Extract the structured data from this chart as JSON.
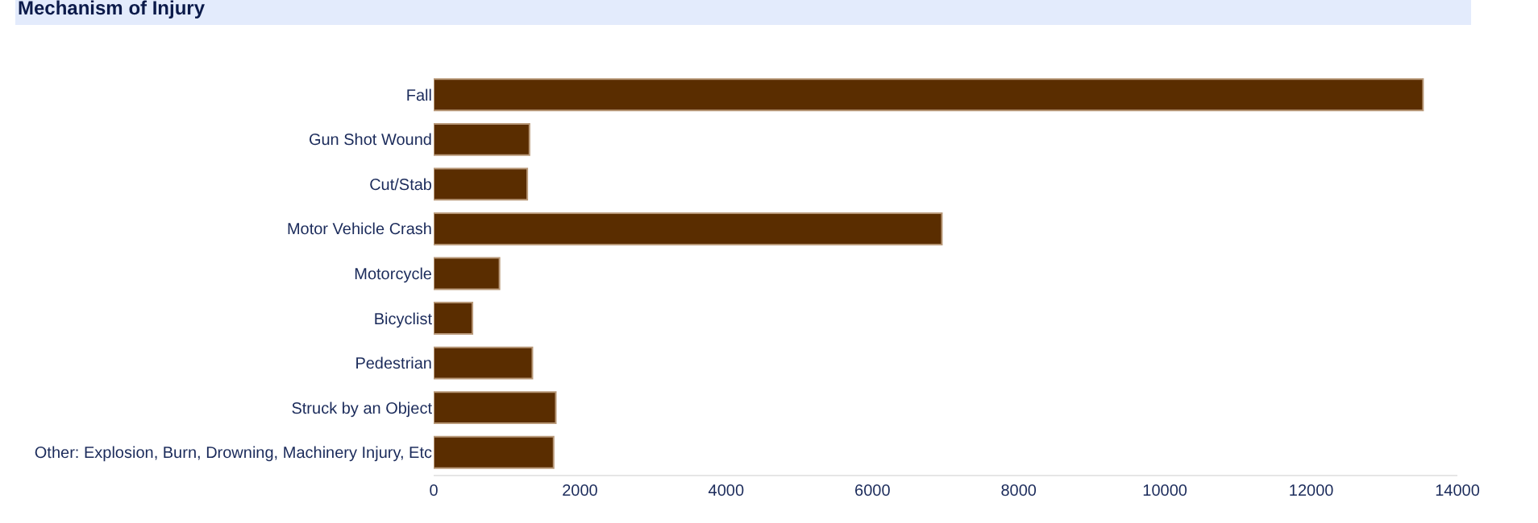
{
  "chart_data": {
    "type": "bar",
    "orientation": "horizontal",
    "title": "Mechanism of Injury",
    "categories": [
      "Fall",
      "Gun Shot Wound",
      "Cut/Stab",
      "Motor Vehicle Crash",
      "Motorcycle",
      "Bicyclist",
      "Pedestrian",
      "Struck by an Object",
      "Other: Explosion, Burn, Drowning, Machinery Injury, Etc"
    ],
    "values": [
      13530,
      1310,
      1280,
      6950,
      900,
      530,
      1350,
      1670,
      1640
    ],
    "color": "#5a2d00",
    "xlim": [
      0,
      14000
    ],
    "xticks": [
      0,
      2000,
      4000,
      6000,
      8000,
      10000,
      12000,
      14000
    ],
    "legend": false
  }
}
